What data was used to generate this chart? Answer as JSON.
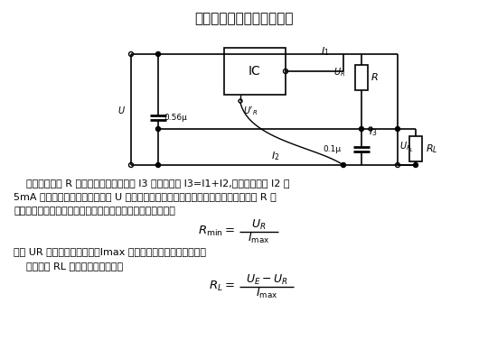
{
  "title": "采用集成稳压电路的恒流源",
  "bg": "#ffffff",
  "lc": "#000000",
  "tc": "#000000",
  "body1": "    该电路中电阻 R 的大小将决定恒定电流 I3 的大小。但 I3=I1+I2,其中静态电流 I2 为",
  "body2": "5mA 左右。电路的设计要使电压 U 不超过集成电路最大允许值。决定电流大小的电阻 R 的",
  "body3": "选择要能保证不使集成电路电流超过最大允许的负载电流，即",
  "body4": "式中 UR 为集成电路稳压值，Imax 为集成电路最大允许电流值。",
  "body5": "    负载电阻 RL 的选择要满足关系："
}
